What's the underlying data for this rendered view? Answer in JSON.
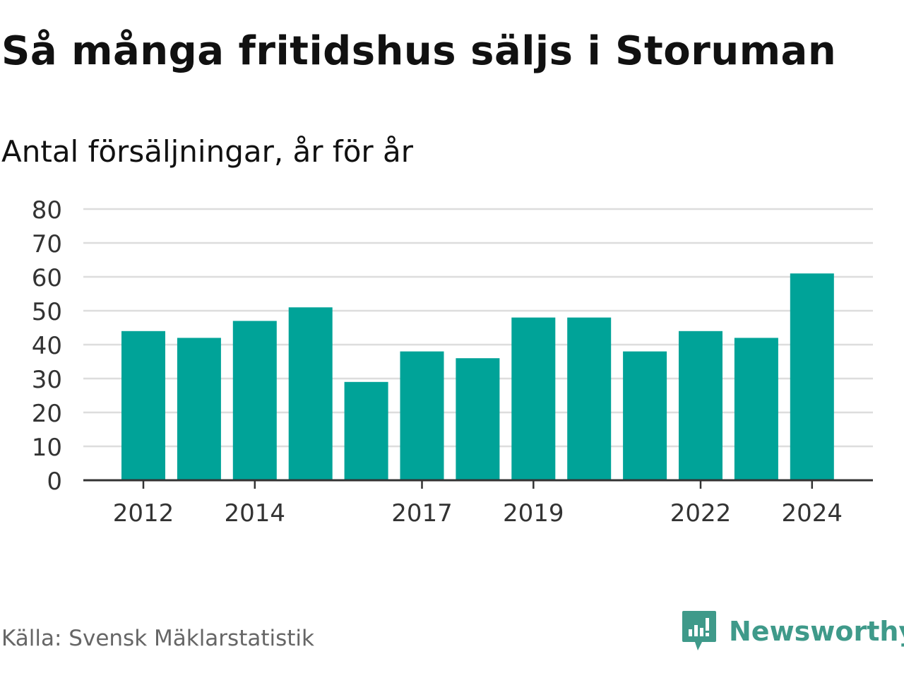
{
  "title": "Så många fritidshus säljs i Storuman",
  "subtitle": "Antal försäljningar, år för år",
  "source": "Källa: Svensk Mäklarstatistik",
  "brand": {
    "name": "Newsworthy",
    "icon": "newsworthy-logo-icon",
    "color": "#3f9a8a"
  },
  "chart_data": {
    "type": "bar",
    "categories": [
      "2012",
      "2013",
      "2014",
      "2015",
      "2016",
      "2017",
      "2018",
      "2019",
      "2020",
      "2021",
      "2022",
      "2023",
      "2024"
    ],
    "values": [
      44,
      42,
      47,
      51,
      29,
      38,
      36,
      48,
      48,
      38,
      44,
      42,
      61
    ],
    "xtick_labels": [
      "2012",
      "2014",
      "2017",
      "2019",
      "2022",
      "2024"
    ],
    "yticks": [
      0,
      10,
      20,
      30,
      40,
      50,
      60,
      70,
      80
    ],
    "ylim": [
      0,
      80
    ],
    "xlabel": "",
    "ylabel": "",
    "grid": true,
    "bar_color": "#00a398",
    "grid_color": "#dddddd",
    "axis_color": "#333333"
  }
}
